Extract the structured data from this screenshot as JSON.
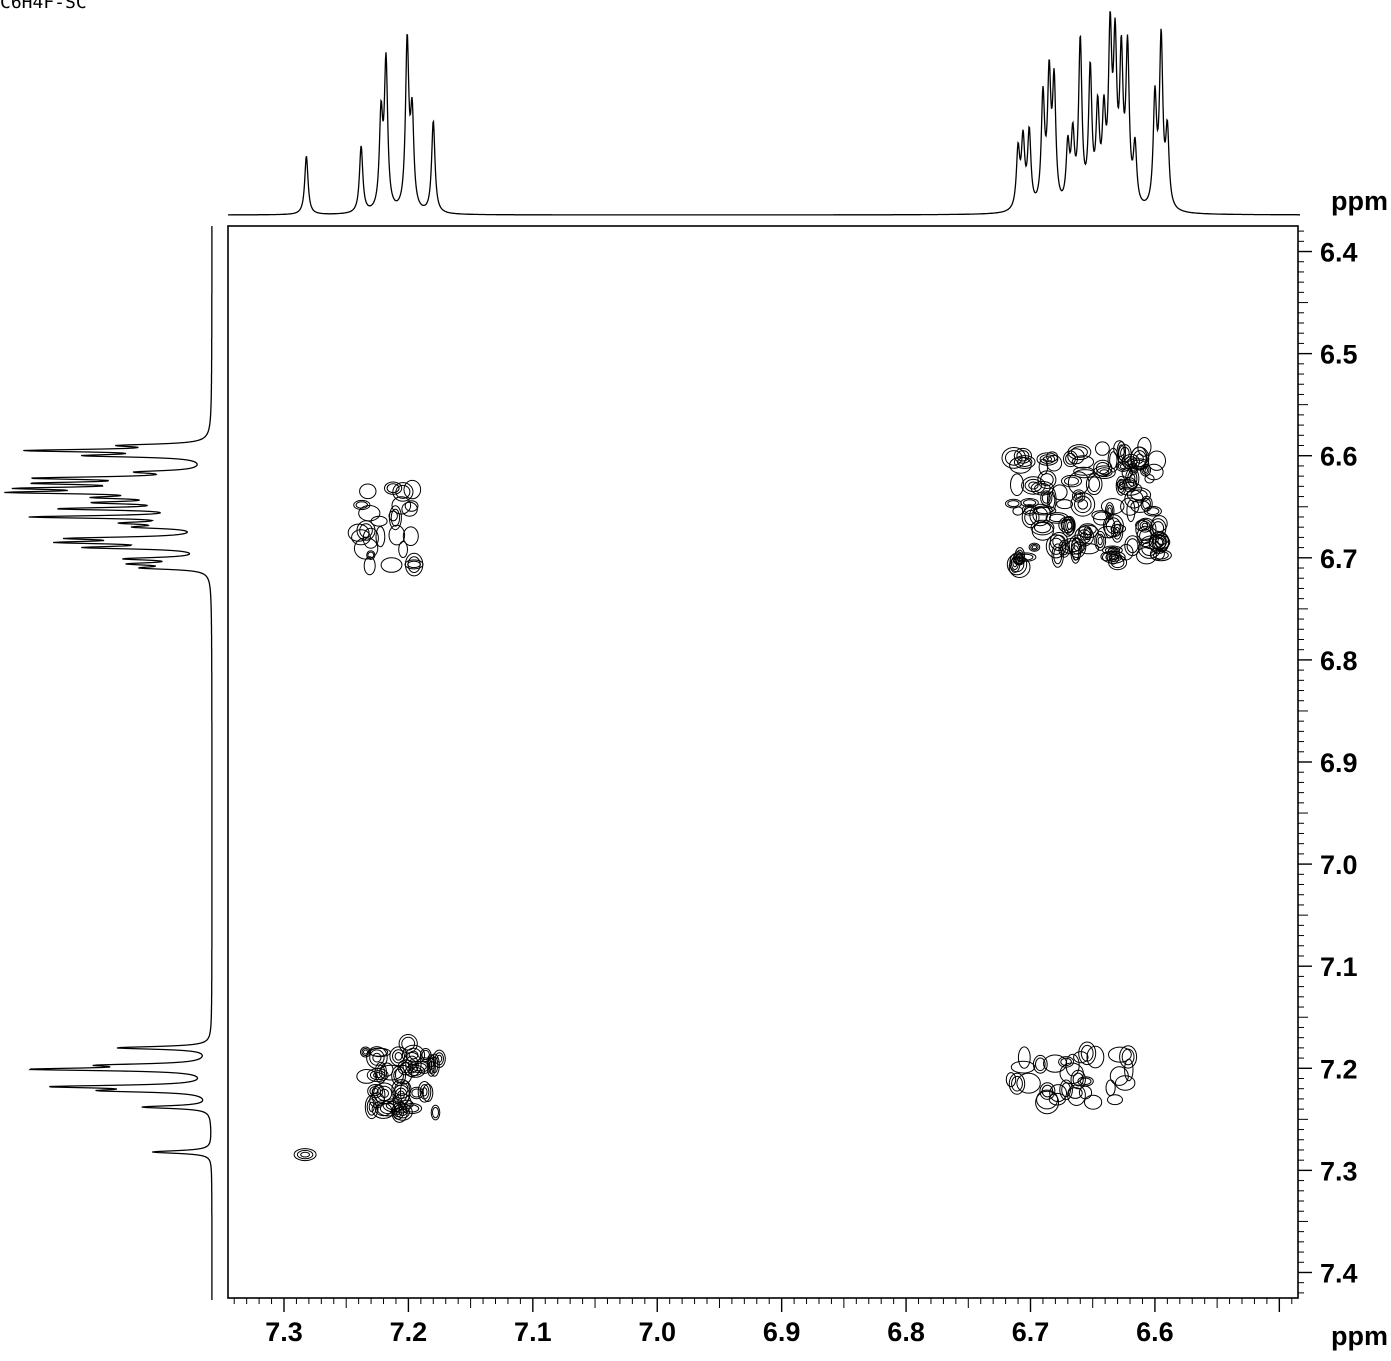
{
  "header": {
    "corner_text": "C6H4F-SC"
  },
  "chart_data": {
    "type": "heatmap",
    "subtype": "2D NMR COSY contour plot with 1D projections",
    "f2_axis": {
      "unit_label": "ppm",
      "range": [
        7.345,
        6.485
      ],
      "ticks": [
        7.3,
        7.2,
        7.1,
        7.0,
        6.9,
        6.8,
        6.7,
        6.6
      ],
      "tick_labels": [
        "7.3",
        "7.2",
        "7.1",
        "7.0",
        "6.9",
        "6.8",
        "6.7",
        "6.6"
      ]
    },
    "f1_axis": {
      "unit_label": "ppm",
      "range": [
        6.375,
        7.425
      ],
      "ticks": [
        6.4,
        6.5,
        6.6,
        6.7,
        6.8,
        6.9,
        7.0,
        7.1,
        7.2,
        7.3,
        7.4
      ],
      "tick_labels": [
        "6.4",
        "6.5",
        "6.6",
        "6.7",
        "6.8",
        "6.9",
        "7.0",
        "7.1",
        "7.2",
        "7.3",
        "7.4"
      ]
    },
    "projection_peaks": [
      {
        "ppm": 7.282,
        "height": 0.35
      },
      {
        "ppm": 7.238,
        "height": 0.4
      },
      {
        "ppm": 7.222,
        "height": 0.55
      },
      {
        "ppm": 7.218,
        "height": 0.88
      },
      {
        "ppm": 7.201,
        "height": 1.0
      },
      {
        "ppm": 7.197,
        "height": 0.55
      },
      {
        "ppm": 7.18,
        "height": 0.55
      },
      {
        "ppm": 6.71,
        "height": 0.35
      },
      {
        "ppm": 6.706,
        "height": 0.4
      },
      {
        "ppm": 6.701,
        "height": 0.45
      },
      {
        "ppm": 6.69,
        "height": 0.65
      },
      {
        "ppm": 6.685,
        "height": 0.75
      },
      {
        "ppm": 6.681,
        "height": 0.72
      },
      {
        "ppm": 6.67,
        "height": 0.35
      },
      {
        "ppm": 6.666,
        "height": 0.4
      },
      {
        "ppm": 6.66,
        "height": 0.98
      },
      {
        "ppm": 6.652,
        "height": 0.8
      },
      {
        "ppm": 6.646,
        "height": 0.55
      },
      {
        "ppm": 6.641,
        "height": 0.5
      },
      {
        "ppm": 6.636,
        "height": 0.98
      },
      {
        "ppm": 6.632,
        "height": 0.9
      },
      {
        "ppm": 6.627,
        "height": 0.85
      },
      {
        "ppm": 6.622,
        "height": 0.92
      },
      {
        "ppm": 6.616,
        "height": 0.35
      },
      {
        "ppm": 6.6,
        "height": 0.65
      },
      {
        "ppm": 6.595,
        "height": 1.0
      },
      {
        "ppm": 6.59,
        "height": 0.45
      }
    ],
    "cross_peak_regions": [
      {
        "f2": [
          7.245,
          7.17
        ],
        "f1": [
          7.17,
          7.25
        ],
        "density": "high",
        "level": 1.0
      },
      {
        "f2": [
          7.29,
          7.276
        ],
        "f1": [
          7.276,
          7.293
        ],
        "density": "single",
        "level": 0.8
      },
      {
        "f2": [
          6.718,
          6.59
        ],
        "f1": [
          6.585,
          6.715
        ],
        "density": "high",
        "level": 0.9
      },
      {
        "f2": [
          7.245,
          7.19
        ],
        "f1": [
          6.62,
          6.715
        ],
        "density": "low",
        "level": 0.45
      },
      {
        "f2": [
          6.72,
          6.61
        ],
        "f1": [
          7.18,
          7.24
        ],
        "density": "low",
        "level": 0.45
      }
    ]
  }
}
